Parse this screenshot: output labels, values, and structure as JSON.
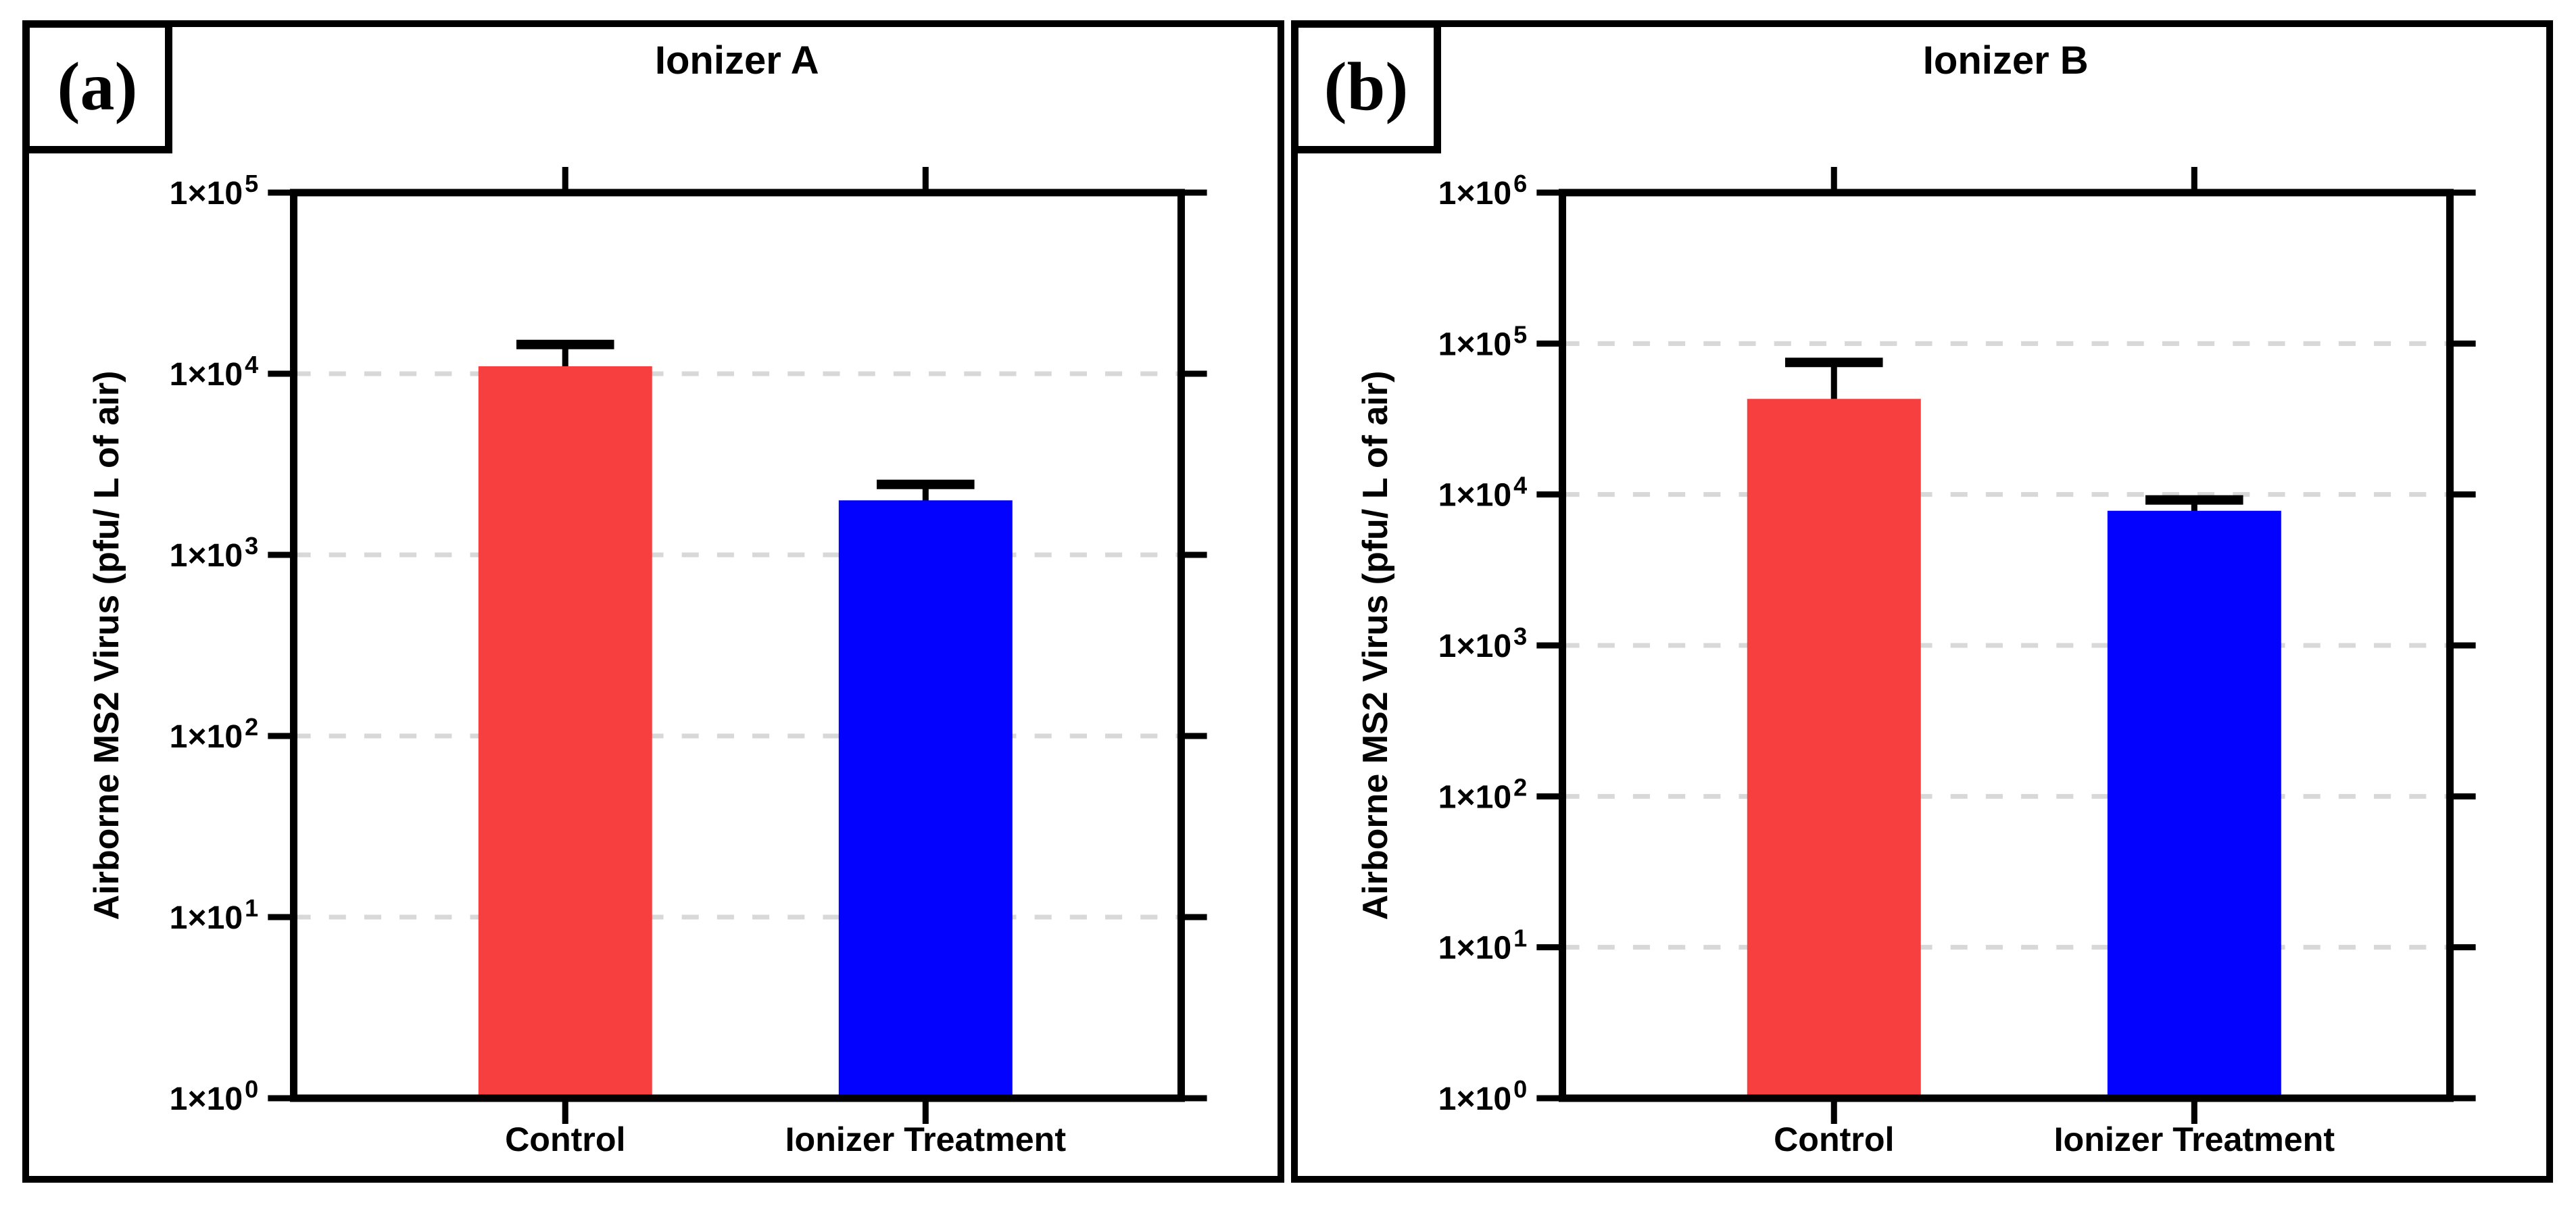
{
  "figure": {
    "background_color": "#FFFFFF",
    "panel_border_color": "#000000",
    "panels_count": 2
  },
  "style": {
    "grid_color": "#D8D8D8",
    "axis_color": "#000000",
    "error_bar_color": "#000000"
  },
  "chart_data": [
    {
      "type": "bar",
      "panel_label": "(a)",
      "title": "Ionizer A",
      "ylabel": "Airborne MS2 Virus (pfu/ L of air)",
      "xlabel": "",
      "yscale": "log",
      "ylim": [
        1,
        100000
      ],
      "ytick_label_base": "1×10",
      "ytick_exponents": [
        0,
        1,
        2,
        3,
        4,
        5
      ],
      "grid": "horizontal dashed gridline at each decade",
      "legend_position": "none",
      "categories": [
        "Control",
        "Ionizer Treatment"
      ],
      "series": [
        {
          "name": "Airborne MS2 Virus (pfu/ L of air)",
          "values": [
            11000,
            2000
          ],
          "error_bar_top_values": [
            14500,
            2450
          ],
          "bar_colors": [
            "#F73F3F",
            "#0202FE"
          ]
        }
      ]
    },
    {
      "type": "bar",
      "panel_label": "(b)",
      "title": "Ionizer B",
      "ylabel": "Airborne MS2 Virus (pfu/ L of air)",
      "xlabel": "",
      "yscale": "log",
      "ylim": [
        1,
        1000000
      ],
      "ytick_label_base": "1×10",
      "ytick_exponents": [
        0,
        1,
        2,
        3,
        4,
        5,
        6
      ],
      "grid": "horizontal dashed gridline at each decade",
      "legend_position": "none",
      "categories": [
        "Control",
        "Ionizer Treatment"
      ],
      "series": [
        {
          "name": "Airborne MS2 Virus (pfu/ L of air)",
          "values": [
            43000,
            7800
          ],
          "error_bar_top_values": [
            75000,
            9200
          ],
          "bar_colors": [
            "#F73F3F",
            "#0202FE"
          ]
        }
      ]
    }
  ]
}
